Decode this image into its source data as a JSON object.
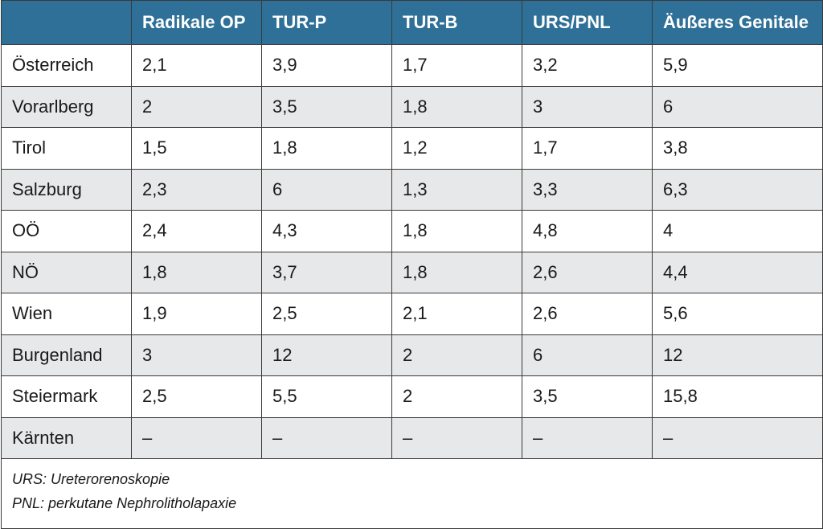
{
  "table": {
    "headers": [
      "",
      "Radikale OP",
      "TUR-P",
      "TUR-B",
      "URS/PNL",
      "Äußeres Genitale"
    ],
    "rows": [
      [
        "Österreich",
        "2,1",
        "3,9",
        "1,7",
        "3,2",
        "5,9"
      ],
      [
        "Vorarlberg",
        "2",
        "3,5",
        "1,8",
        "3",
        "6"
      ],
      [
        "Tirol",
        "1,5",
        "1,8",
        "1,2",
        "1,7",
        "3,8"
      ],
      [
        "Salzburg",
        "2,3",
        "6",
        "1,3",
        "3,3",
        "6,3"
      ],
      [
        "OÖ",
        "2,4",
        "4,3",
        "1,8",
        "4,8",
        "4"
      ],
      [
        "NÖ",
        "1,8",
        "3,7",
        "1,8",
        "2,6",
        "4,4"
      ],
      [
        "Wien",
        "1,9",
        "2,5",
        "2,1",
        "2,6",
        "5,6"
      ],
      [
        "Burgenland",
        "3",
        "12",
        "2",
        "6",
        "12"
      ],
      [
        "Steiermark",
        "2,5",
        "5,5",
        "2",
        "3,5",
        "15,8"
      ],
      [
        "Kärnten",
        "–",
        "–",
        "–",
        "–",
        "–"
      ]
    ],
    "notes": [
      "URS: Ureterorenoskopie",
      "PNL: perkutane Nephrolitholapaxie"
    ]
  },
  "colors": {
    "header_bg": "#2e7097",
    "header_text": "#ffffff",
    "row_shade": "#e7e8e9",
    "border": "#3a3a3a"
  }
}
